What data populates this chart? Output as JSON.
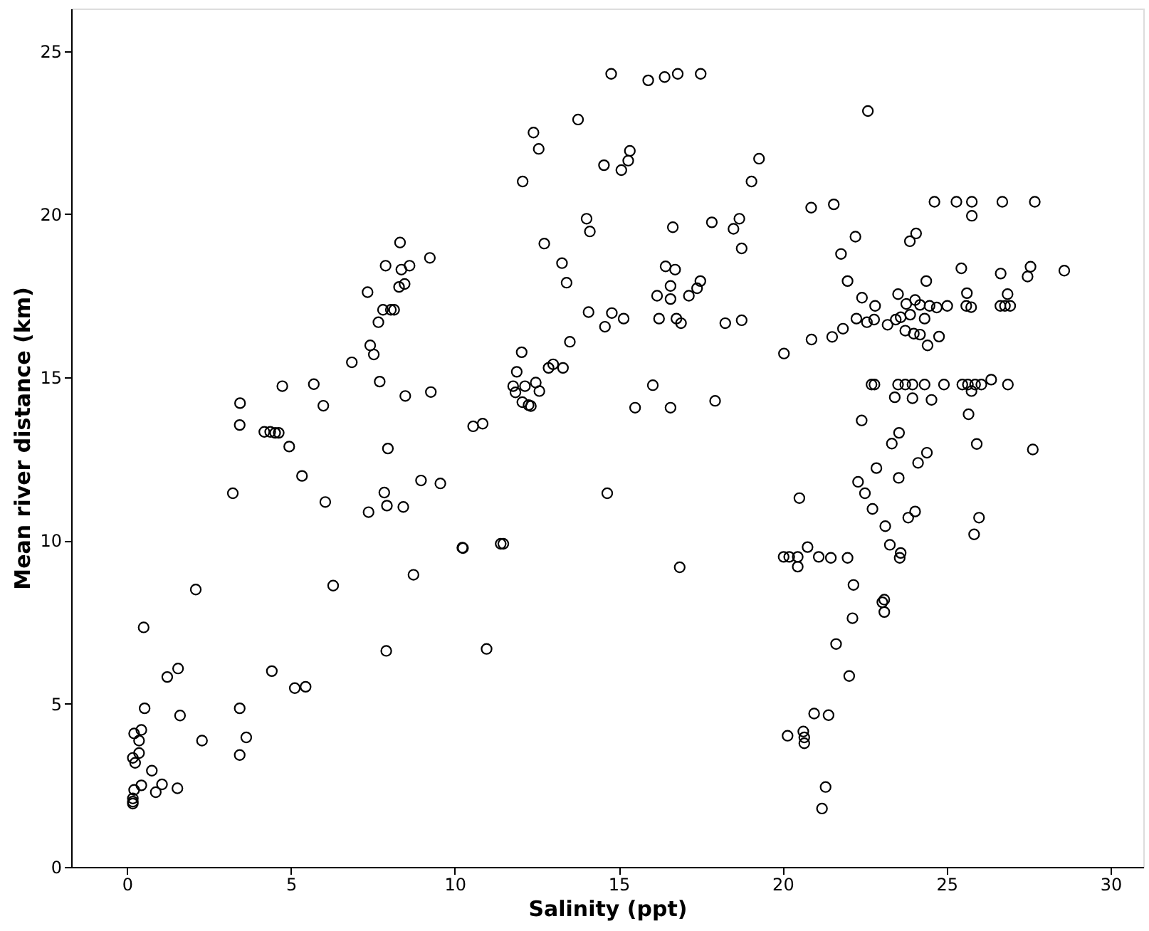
{
  "chart_data": {
    "type": "scatter",
    "xlabel": "Salinity (ppt)",
    "ylabel": "Mean river distance (km)",
    "xlim": [
      -1.7,
      31
    ],
    "ylim": [
      0,
      26.3
    ],
    "xticks": [
      0,
      5,
      10,
      15,
      20,
      25,
      30
    ],
    "yticks": [
      0,
      5,
      10,
      15,
      20,
      25
    ],
    "grid": false,
    "marker": "circle",
    "series": [
      {
        "color": "#000000",
        "x": [
          0.18,
          0.18,
          0.18,
          0.22,
          0.44,
          0.88,
          1.07,
          1.54,
          0.76,
          0.18,
          0.25,
          0.37,
          0.37,
          0.22,
          0.44,
          0.54,
          1.62,
          1.23,
          1.56,
          0.51,
          2.1,
          2.29,
          3.44,
          3.64,
          3.44,
          4.42,
          5.12,
          5.45,
          6.29,
          7.91,
          8.74,
          10.25,
          3.23,
          5.34,
          6.05,
          7.37,
          7.85,
          7.93,
          8.43,
          8.97,
          9.56,
          4.95,
          7.96,
          8.33,
          9.24,
          7.89,
          8.37,
          8.62,
          8.3,
          8.47,
          7.34,
          7.81,
          8.05,
          8.15,
          7.67,
          7.42,
          7.53,
          6.86,
          7.71,
          8.49,
          9.27,
          4.74,
          5.7,
          5.99,
          3.45,
          3.44,
          4.19,
          4.37,
          4.52,
          4.63,
          10.56,
          10.85,
          10.23,
          11.4,
          11.48,
          10.97,
          14.77,
          15.9,
          16.4,
          16.8,
          17.5,
          13.76,
          12.4,
          12.56,
          12.07,
          14.55,
          15.08,
          15.29,
          15.34,
          19.28,
          19.05,
          20.87,
          14.02,
          14.12,
          12.73,
          13.27,
          13.41,
          16.65,
          17.84,
          18.68,
          18.5,
          18.75,
          16.43,
          16.72,
          16.58,
          17.49,
          17.39,
          17.14,
          16.17,
          16.58,
          14.08,
          14.79,
          14.58,
          15.15,
          16.23,
          16.76,
          16.9,
          18.25,
          18.75,
          13.51,
          12.04,
          11.89,
          13.0,
          12.86,
          13.3,
          11.78,
          12.14,
          12.47,
          12.58,
          11.85,
          12.06,
          12.32,
          12.25,
          16.04,
          15.5,
          16.58,
          17.94,
          20.04,
          20.88,
          14.65,
          20.51,
          16.86,
          20.03,
          20.2,
          20.46,
          20.76,
          21.1,
          20.46,
          21.56,
          24.63,
          25.3,
          25.77,
          25.77,
          26.7,
          27.69,
          22.22,
          21.78,
          24.07,
          23.88,
          21.98,
          24.38,
          25.45,
          26.65,
          27.56,
          27.47,
          28.59,
          22.42,
          22.82,
          23.52,
          23.77,
          24.04,
          24.19,
          24.48,
          24.7,
          25.02,
          25.62,
          25.6,
          25.75,
          26.86,
          26.64,
          26.78,
          26.94,
          22.25,
          22.57,
          22.79,
          23.2,
          23.45,
          23.6,
          23.89,
          24.33,
          23.74,
          24.0,
          24.19,
          24.42,
          24.77,
          21.84,
          21.51,
          22.71,
          22.8,
          23.52,
          23.74,
          23.96,
          24.33,
          24.92,
          25.48,
          25.65,
          25.87,
          26.06,
          26.36,
          26.87,
          23.42,
          23.96,
          24.54,
          25.76,
          25.67,
          22.41,
          23.55,
          23.33,
          25.92,
          27.63,
          24.4,
          24.13,
          22.86,
          23.54,
          22.3,
          22.51,
          22.74,
          24.04,
          23.83,
          25.99,
          25.84,
          23.13,
          23.27,
          23.6,
          23.57,
          21.47,
          21.98,
          22.16,
          23.04,
          23.1,
          23.1,
          22.13,
          21.63,
          22.03,
          20.96,
          21.4,
          20.15,
          20.63,
          20.66,
          20.66,
          21.31,
          21.2,
          22.6
        ],
        "values": [
          1.94,
          2.0,
          2.1,
          2.36,
          2.5,
          2.29,
          2.53,
          2.41,
          2.95,
          3.34,
          3.19,
          3.49,
          3.87,
          4.09,
          4.2,
          4.86,
          4.64,
          5.82,
          6.08,
          7.34,
          8.5,
          3.87,
          4.86,
          3.97,
          3.43,
          6.0,
          5.48,
          5.52,
          8.62,
          6.62,
          8.95,
          9.77,
          11.45,
          11.98,
          11.18,
          10.87,
          11.47,
          11.07,
          11.03,
          11.84,
          11.75,
          12.88,
          12.82,
          19.13,
          18.66,
          18.42,
          18.3,
          18.42,
          17.77,
          17.86,
          17.61,
          17.07,
          17.07,
          17.07,
          16.69,
          15.98,
          15.7,
          15.46,
          14.87,
          14.43,
          14.55,
          14.73,
          14.79,
          14.13,
          14.21,
          13.54,
          13.33,
          13.33,
          13.3,
          13.3,
          13.5,
          13.58,
          9.78,
          9.9,
          9.9,
          6.68,
          24.3,
          24.1,
          24.2,
          24.3,
          24.3,
          22.9,
          22.5,
          22.0,
          21.0,
          21.5,
          21.35,
          21.64,
          21.94,
          21.7,
          21.0,
          20.2,
          19.86,
          19.47,
          19.1,
          18.5,
          17.9,
          19.6,
          19.75,
          19.86,
          19.55,
          18.95,
          18.4,
          18.3,
          17.8,
          17.95,
          17.73,
          17.5,
          17.5,
          17.4,
          17.0,
          16.97,
          16.55,
          16.8,
          16.8,
          16.8,
          16.66,
          16.66,
          16.75,
          16.09,
          15.77,
          15.17,
          15.4,
          15.29,
          15.29,
          14.73,
          14.73,
          14.84,
          14.58,
          14.54,
          14.24,
          14.12,
          14.15,
          14.76,
          14.07,
          14.07,
          14.28,
          15.73,
          16.16,
          11.45,
          11.3,
          9.18,
          9.5,
          9.5,
          9.5,
          9.8,
          9.5,
          9.2,
          20.3,
          20.38,
          20.38,
          20.38,
          19.95,
          20.38,
          20.38,
          19.31,
          18.78,
          19.41,
          19.17,
          17.95,
          17.95,
          18.34,
          18.18,
          18.39,
          18.09,
          18.27,
          17.44,
          17.19,
          17.55,
          17.25,
          17.37,
          17.22,
          17.19,
          17.14,
          17.19,
          17.58,
          17.19,
          17.15,
          17.55,
          17.19,
          17.19,
          17.19,
          16.8,
          16.69,
          16.77,
          16.61,
          16.77,
          16.84,
          16.92,
          16.8,
          16.43,
          16.34,
          16.31,
          15.98,
          16.25,
          16.49,
          16.24,
          14.78,
          14.78,
          14.78,
          14.78,
          14.78,
          14.78,
          14.78,
          14.78,
          14.78,
          14.78,
          14.78,
          14.93,
          14.78,
          14.39,
          14.36,
          14.31,
          14.58,
          13.87,
          13.68,
          13.3,
          12.97,
          12.96,
          12.79,
          12.69,
          12.38,
          12.22,
          11.92,
          11.8,
          11.45,
          10.97,
          10.89,
          10.7,
          10.7,
          10.19,
          10.44,
          9.87,
          9.62,
          9.47,
          9.47,
          9.47,
          8.64,
          8.11,
          8.19,
          7.81,
          7.62,
          6.83,
          5.85,
          4.7,
          4.65,
          4.02,
          4.15,
          3.97,
          3.79,
          2.45,
          1.79,
          23.16
        ]
      }
    ]
  }
}
